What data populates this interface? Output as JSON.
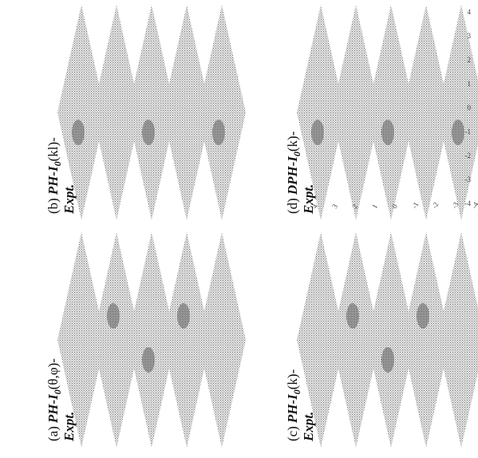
{
  "panels": [
    {
      "tag": "(a)",
      "name": "PH-I",
      "sub": "0",
      "args": "(θ,φ)-",
      "note": "Expt."
    },
    {
      "tag": "(b)",
      "name": "PH-I",
      "sub": "0",
      "args": "(kl)-",
      "note": "Expt."
    },
    {
      "tag": "(c)",
      "name": "PH-I",
      "sub": "0",
      "args": "(k)-",
      "note": "Expt."
    },
    {
      "tag": "(d)",
      "name": "DPH-I",
      "sub": "0",
      "args": "(k)-",
      "note": "Expt.",
      "axis_ticks": [
        "4",
        "3",
        "2",
        "1",
        "0",
        "-1",
        "-2",
        "-3",
        "-4"
      ]
    }
  ]
}
